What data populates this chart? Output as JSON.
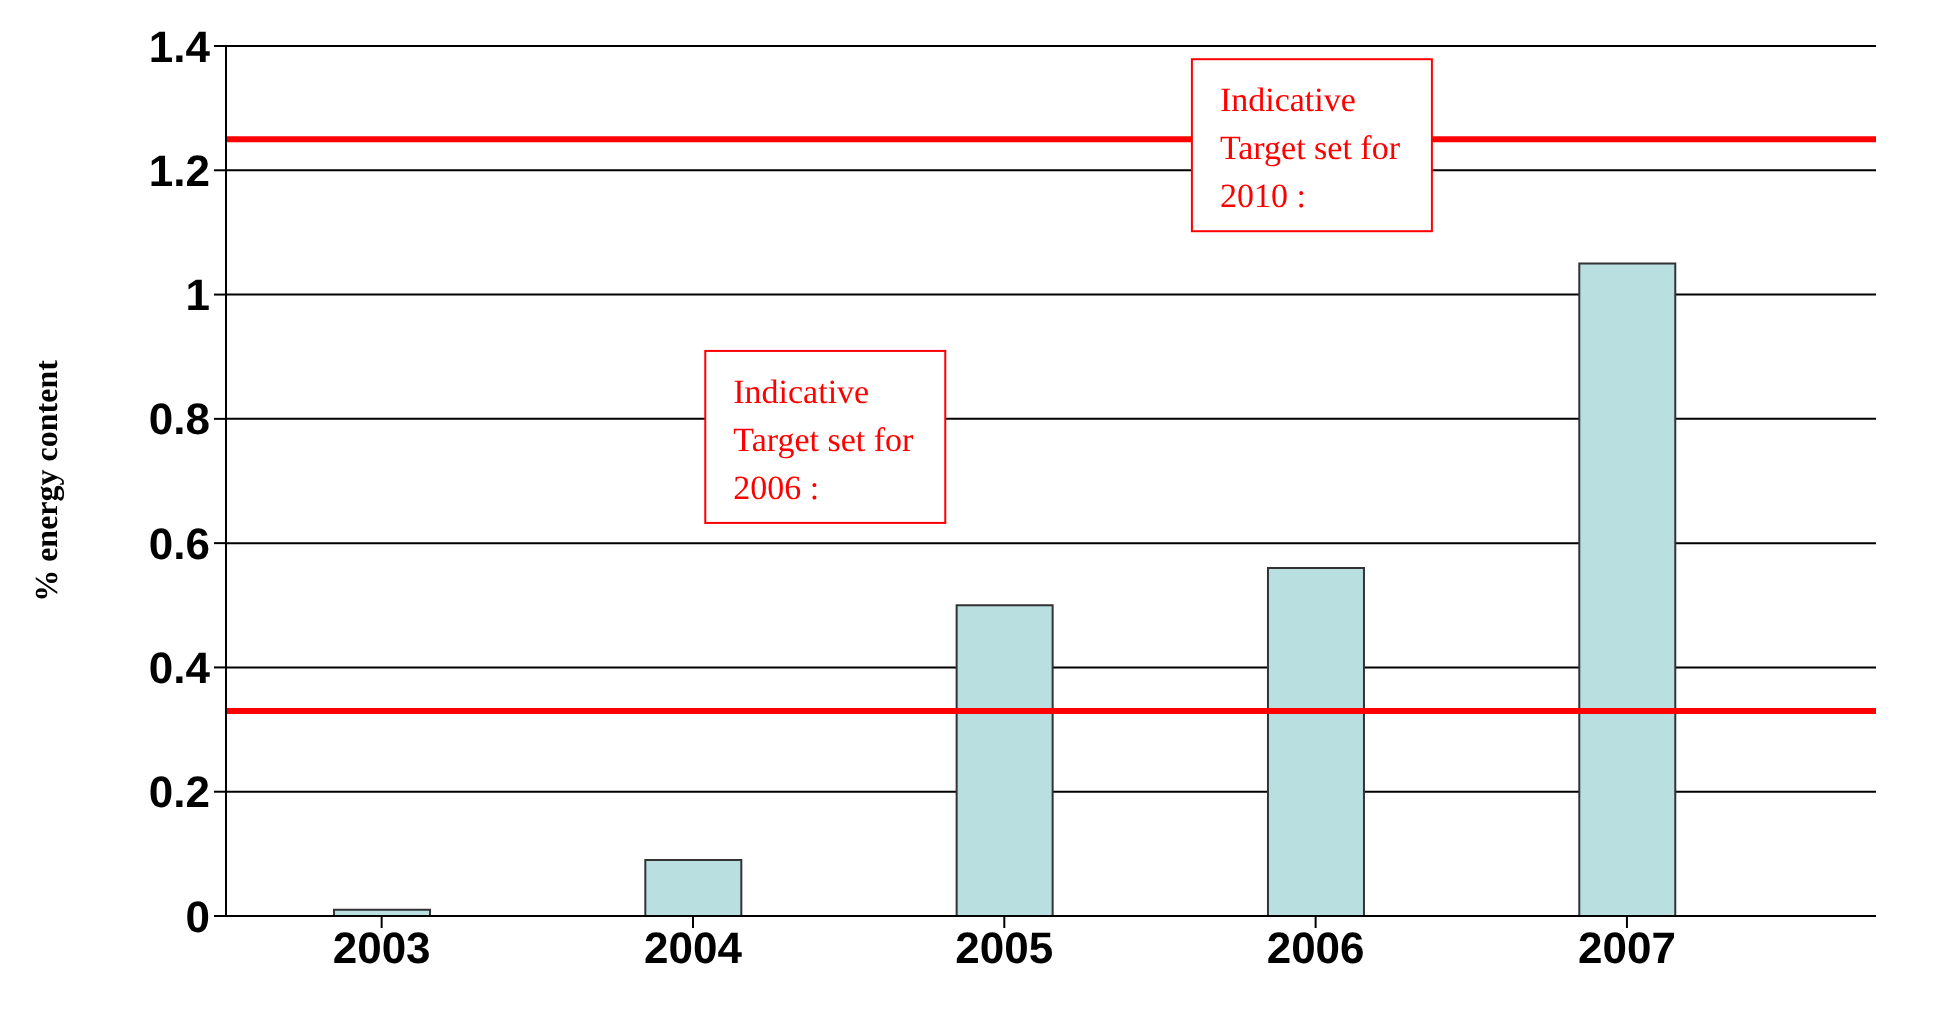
{
  "chart_data": {
    "type": "bar",
    "ylabel": "% energy content",
    "categories": [
      "2003",
      "2004",
      "2005",
      "2006",
      "2007"
    ],
    "values": [
      0.01,
      0.09,
      0.5,
      0.56,
      1.05
    ],
    "color": "#b9dfe0",
    "ylim": [
      0,
      1.4
    ],
    "yticks": [
      0,
      0.2,
      0.4,
      0.6,
      0.8,
      1,
      1.2,
      1.4
    ],
    "grid": "y",
    "ref_lines": [
      {
        "axis": "y",
        "value": 0.33,
        "label": "Indicative Target set for 2006 :",
        "color": "#ff0000"
      },
      {
        "axis": "y",
        "value": 1.25,
        "label": "Indicative Target set for 2010 :",
        "color": "#ff0000"
      }
    ]
  }
}
